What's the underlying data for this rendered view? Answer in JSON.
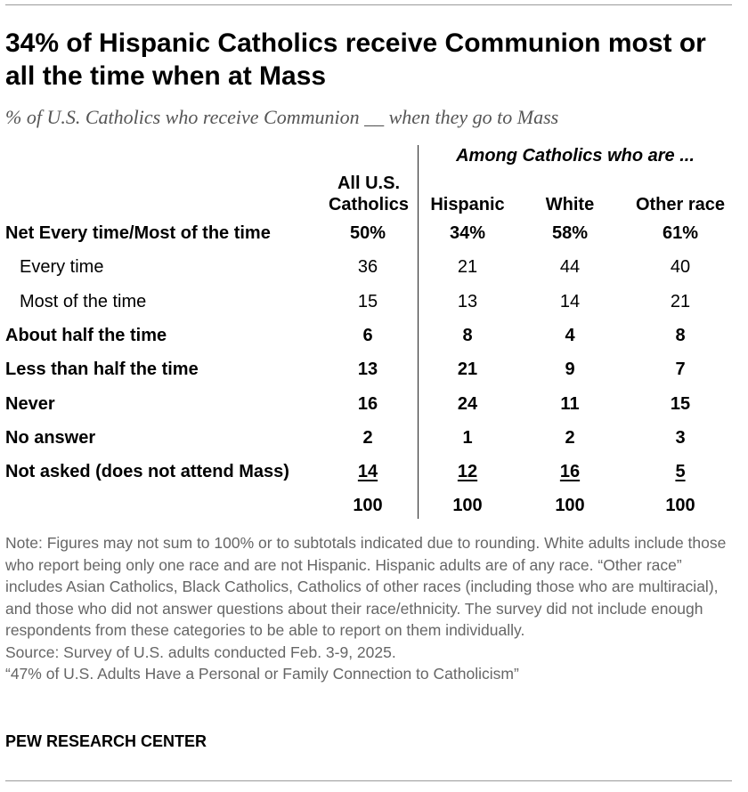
{
  "title": "34% of Hispanic Catholics receive Communion most or all the time when at Mass",
  "subtitle": "% of U.S. Catholics who receive Communion __ when they go to Mass",
  "group_header": "Among Catholics who are ...",
  "columns": {
    "all_line1": "All U.S.",
    "all_line2": "Catholics",
    "hispanic": "Hispanic",
    "white": "White",
    "other": "Other race"
  },
  "chart_data": {
    "type": "table",
    "title": "34% of Hispanic Catholics receive Communion most or all the time when at Mass",
    "subtitle": "% of U.S. Catholics who receive Communion __ when they go to Mass",
    "columns": [
      "All U.S. Catholics",
      "Hispanic",
      "White",
      "Other race"
    ],
    "rows": [
      {
        "label": "Net Every time/Most of the time",
        "values": [
          "50%",
          "34%",
          "58%",
          "61%"
        ],
        "bold": true
      },
      {
        "label": "Every time",
        "values": [
          "36",
          "21",
          "44",
          "40"
        ],
        "bold": false,
        "indent": true
      },
      {
        "label": "Most of the time",
        "values": [
          "15",
          "13",
          "14",
          "21"
        ],
        "bold": false,
        "indent": true
      },
      {
        "label": "About half the time",
        "values": [
          "6",
          "8",
          "4",
          "8"
        ],
        "bold": true
      },
      {
        "label": "Less than half the time",
        "values": [
          "13",
          "21",
          "9",
          "7"
        ],
        "bold": true
      },
      {
        "label": "Never",
        "values": [
          "16",
          "24",
          "11",
          "15"
        ],
        "bold": true
      },
      {
        "label": "No answer",
        "values": [
          "2",
          "1",
          "2",
          "3"
        ],
        "bold": true
      },
      {
        "label": "Not asked (does not attend Mass)",
        "values": [
          "14",
          "12",
          "16",
          "5"
        ],
        "bold": true,
        "underline": true
      },
      {
        "label": "",
        "values": [
          "100",
          "100",
          "100",
          "100"
        ],
        "bold": true
      }
    ]
  },
  "notes": {
    "note": "Note: Figures may not sum to 100% or to subtotals indicated due to rounding. White adults include those who report being only one race and are not Hispanic. Hispanic adults are of any race. “Other race” includes Asian Catholics, Black Catholics, Catholics of other races (including those who are multiracial), and those who did not answer questions about their race/ethnicity. The survey did not include enough respondents from these categories to be able to report on them individually.",
    "source": "Source: Survey of U.S. adults conducted Feb. 3-9, 2025.",
    "report": "“47% of U.S. Adults Have a Personal or Family Connection to Catholicism”"
  },
  "org": "PEW RESEARCH CENTER"
}
